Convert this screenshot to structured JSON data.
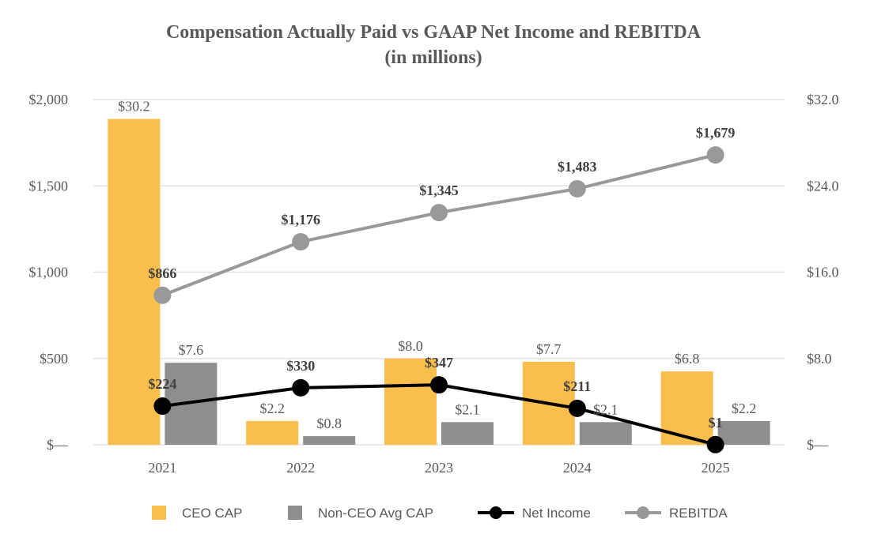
{
  "chart_data": {
    "type": "bar",
    "title": "Compensation Actually Paid vs GAAP Net Income and REBITDA",
    "subtitle": "(in millions)",
    "categories": [
      "2021",
      "2022",
      "2023",
      "2024",
      "2025"
    ],
    "y_left": {
      "range": [
        0,
        2000
      ],
      "ticks": [
        0,
        500,
        1000,
        1500,
        2000
      ],
      "tick_labels": [
        "$—",
        "$500",
        "$1,000",
        "$1,500",
        "$2,000"
      ]
    },
    "y_right": {
      "range": [
        0,
        32
      ],
      "ticks": [
        0,
        8,
        16,
        24,
        32
      ],
      "tick_labels": [
        "$—",
        "$8.0",
        "$16.0",
        "$24.0",
        "$32.0"
      ]
    },
    "grid": true,
    "legend_position": "bottom",
    "series": [
      {
        "name": "CEO CAP",
        "kind": "bar",
        "axis": "right",
        "color": "#F9BE4C",
        "values": [
          30.2,
          2.2,
          8.0,
          7.7,
          6.8
        ],
        "labels": [
          "$30.2",
          "$2.2",
          "$8.0",
          "$7.7",
          "$6.8"
        ]
      },
      {
        "name": "Non-CEO Avg CAP",
        "kind": "bar",
        "axis": "right",
        "color": "#8E8E8E",
        "values": [
          7.6,
          0.8,
          2.1,
          2.1,
          2.2
        ],
        "labels": [
          "$7.6",
          "$0.8",
          "$2.1",
          "$2.1",
          "$2.2"
        ]
      },
      {
        "name": "Net Income",
        "kind": "line",
        "axis": "left",
        "color": "#000000",
        "values": [
          224,
          330,
          347,
          211,
          1
        ],
        "labels": [
          "$224",
          "$330",
          "$347",
          "$211",
          "$1"
        ]
      },
      {
        "name": "REBITDA",
        "kind": "line",
        "axis": "left",
        "color": "#999999",
        "values": [
          866,
          1176,
          1345,
          1483,
          1679
        ],
        "labels": [
          "$866",
          "$1,176",
          "$1,345",
          "$1,483",
          "$1,679"
        ]
      }
    ]
  }
}
